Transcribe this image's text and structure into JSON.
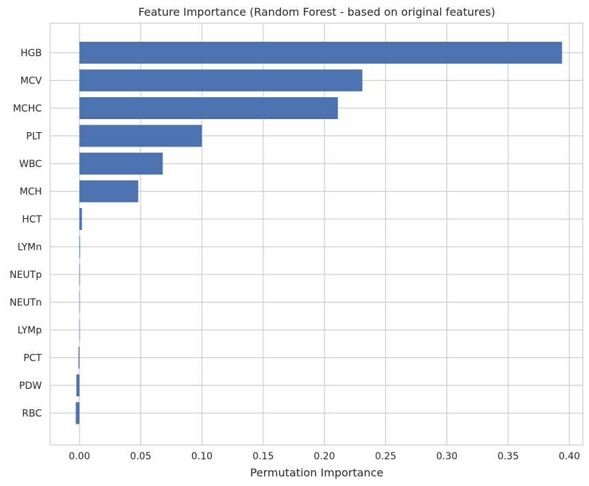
{
  "chart_data": {
    "type": "bar",
    "orientation": "horizontal",
    "title": "Feature Importance (Random Forest - based on original features)",
    "xlabel": "Permutation Importance",
    "ylabel": "",
    "categories": [
      "HGB",
      "MCV",
      "MCHC",
      "PLT",
      "WBC",
      "MCH",
      "HCT",
      "LYMn",
      "NEUTp",
      "NEUTn",
      "LYMp",
      "PCT",
      "PDW",
      "RBC"
    ],
    "values": [
      0.394,
      0.231,
      0.211,
      0.1,
      0.068,
      0.048,
      0.002,
      0.0005,
      0.0004,
      0.0003,
      0.0002,
      -0.0008,
      -0.0025,
      -0.003
    ],
    "xlim": [
      -0.024,
      0.411
    ],
    "xticks": [
      "0.00",
      "0.05",
      "0.10",
      "0.15",
      "0.20",
      "0.25",
      "0.30",
      "0.35",
      "0.40"
    ],
    "bar_color": "#4c72b0",
    "grid": true,
    "grid_color": "#cccccc",
    "frame_color": "#cccccc"
  }
}
